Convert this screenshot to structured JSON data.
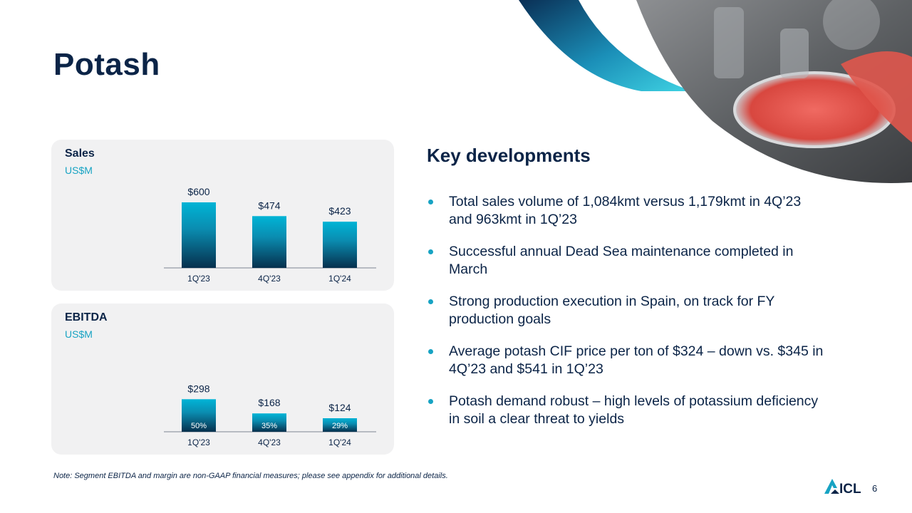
{
  "page": {
    "title": "Potash",
    "page_number": "6",
    "note": "Note: Segment EBITDA and margin are non-GAAP financial measures; please see appendix for additional details."
  },
  "colors": {
    "navy": "#0b2447",
    "teal": "#17a3c3",
    "bar_top": "#00b4d6",
    "bar_bottom": "#06304d",
    "panel_bg": "#f1f1f2"
  },
  "key_developments": {
    "title": "Key developments",
    "items": [
      "Total sales volume of 1,084kmt versus 1,179kmt in 4Q’23 and 963kmt in 1Q’23",
      "Successful annual Dead Sea maintenance completed in March",
      "Strong production execution in Spain, on track for FY production goals",
      "Average potash CIF price per ton of $324 – down vs. $345 in 4Q’23 and $541 in 1Q’23",
      "Potash demand robust – high levels of potassium deficiency in soil a clear threat to yields"
    ]
  },
  "logo": {
    "name": "ICL",
    "icon": "icl-logo-icon"
  },
  "chart_data": [
    {
      "type": "bar",
      "title": "Sales",
      "subtitle": "US$M",
      "categories": [
        "1Q'23",
        "4Q'23",
        "1Q'24"
      ],
      "values": [
        600,
        474,
        423
      ],
      "value_labels": [
        "$600",
        "$474",
        "$423"
      ],
      "ylim": [
        0,
        600
      ],
      "grid": false
    },
    {
      "type": "bar",
      "title": "EBITDA",
      "subtitle": "US$M",
      "categories": [
        "1Q'23",
        "4Q'23",
        "1Q'24"
      ],
      "values": [
        298,
        168,
        124
      ],
      "value_labels": [
        "$298",
        "$168",
        "$124"
      ],
      "margin_labels": [
        "50%",
        "35%",
        "29%"
      ],
      "ylim": [
        0,
        600
      ],
      "grid": false
    }
  ]
}
